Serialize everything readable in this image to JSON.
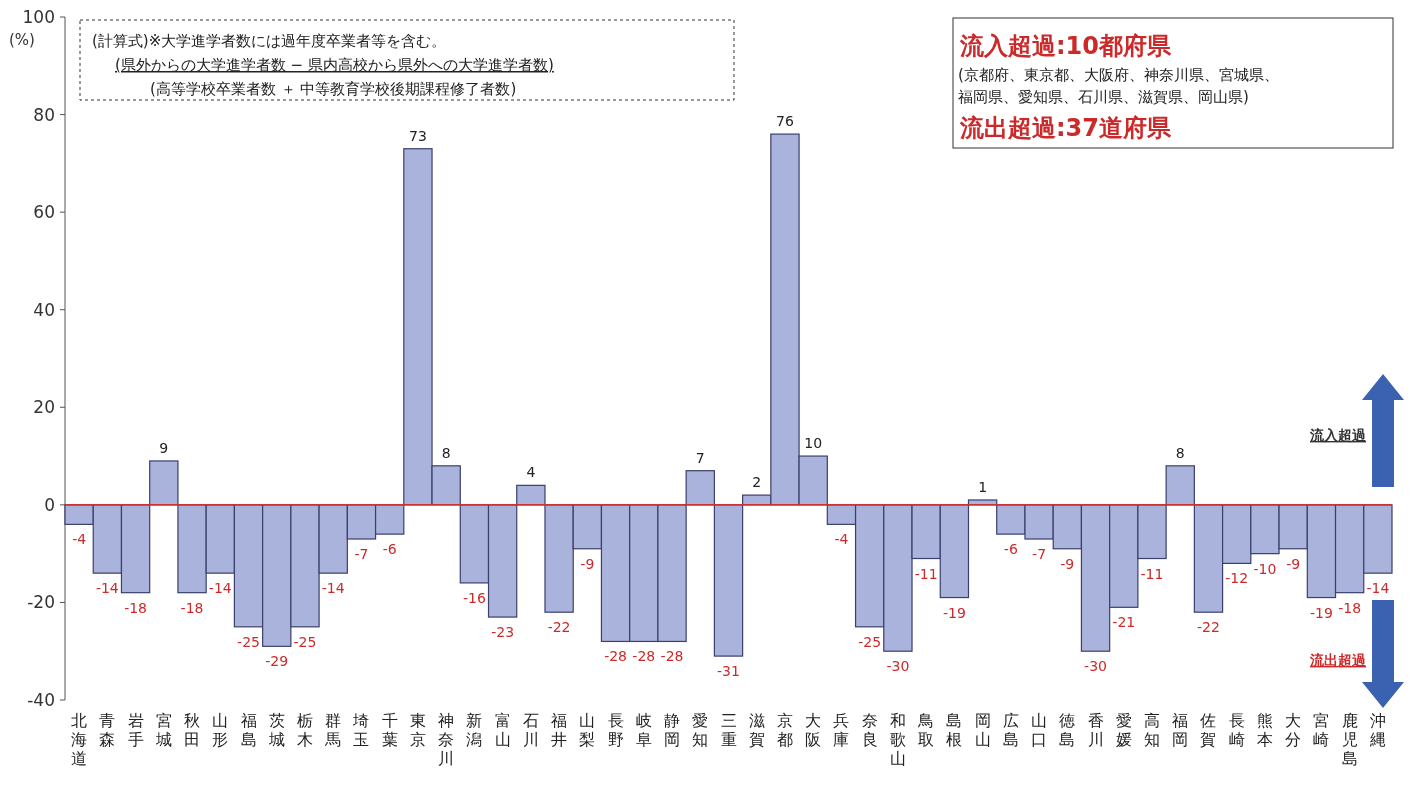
{
  "chart_data": {
    "type": "bar",
    "ylabel": "(%)",
    "categories": [
      "北海道",
      "青森",
      "岩手",
      "宮城",
      "秋田",
      "山形",
      "福島",
      "茨城",
      "栃木",
      "群馬",
      "埼玉",
      "千葉",
      "東京",
      "神奈川",
      "新潟",
      "富山",
      "石川",
      "福井",
      "山梨",
      "長野",
      "岐阜",
      "静岡",
      "愛知",
      "三重",
      "滋賀",
      "京都",
      "大阪",
      "兵庫",
      "奈良",
      "和歌山",
      "鳥取",
      "島根",
      "岡山",
      "広島",
      "山口",
      "徳島",
      "香川",
      "愛媛",
      "高知",
      "福岡",
      "佐賀",
      "長崎",
      "熊本",
      "大分",
      "宮崎",
      "鹿児島",
      "沖縄"
    ],
    "values": [
      -4,
      -14,
      -18,
      9,
      -18,
      -14,
      -25,
      -29,
      -25,
      -14,
      -7,
      -6,
      73,
      8,
      -16,
      -23,
      4,
      -22,
      -9,
      -28,
      -28,
      -28,
      7,
      -31,
      2,
      76,
      10,
      -4,
      -25,
      -30,
      -11,
      -19,
      1,
      -6,
      -7,
      -9,
      -30,
      -21,
      -11,
      8,
      -22,
      -12,
      -10,
      -9,
      -19,
      -18,
      -14
    ],
    "color": "#aab3dc",
    "ylim": [
      -40,
      100
    ],
    "yticks": [
      -40,
      -20,
      0,
      20,
      40,
      60,
      80,
      100
    ],
    "data_labels": true,
    "ref_lines": [
      {
        "axis": "y",
        "value": 0,
        "label": null,
        "color": "#cc3333"
      }
    ],
    "annotations": [
      "(計算式)※大学進学者数には過年度卒業者等を含む。",
      "(県外からの大学進学者数 − 県内高校から県外への大学進学者数)",
      "(高等学校卒業者数 ＋ 中等教育学校後期課程修了者数)",
      "流入超過:10都府県",
      "(京都府、東京都、大阪府、神奈川県、宮城県、福岡県、愛知県、石川県、滋賀県、岡山県)",
      "流出超過:37道府県",
      "流入超過",
      "流出超過"
    ]
  }
}
